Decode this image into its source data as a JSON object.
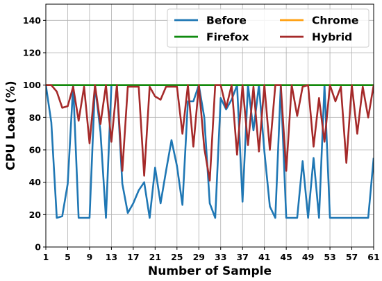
{
  "chart_data": {
    "type": "line",
    "title": "",
    "xlabel": "Number of Sample",
    "ylabel": "CPU Load (%)",
    "xlim": [
      1,
      61
    ],
    "ylim": [
      0,
      150
    ],
    "xticks": [
      1,
      5,
      9,
      13,
      17,
      21,
      25,
      29,
      33,
      37,
      41,
      45,
      49,
      53,
      57,
      61
    ],
    "yticks": [
      0,
      20,
      40,
      60,
      80,
      100,
      120,
      140
    ],
    "grid": true,
    "legend_position": "top-right",
    "x": [
      1,
      2,
      3,
      4,
      5,
      6,
      7,
      8,
      9,
      10,
      11,
      12,
      13,
      14,
      15,
      16,
      17,
      18,
      19,
      20,
      21,
      22,
      23,
      24,
      25,
      26,
      27,
      28,
      29,
      30,
      31,
      32,
      33,
      34,
      35,
      36,
      37,
      38,
      39,
      40,
      41,
      42,
      43,
      44,
      45,
      46,
      47,
      48,
      49,
      50,
      51,
      52,
      53,
      54,
      55,
      56,
      57,
      58,
      59,
      60,
      61
    ],
    "series": [
      {
        "name": "Before",
        "color": "#1f77b4",
        "values": [
          100,
          77,
          18,
          19,
          39,
          100,
          18,
          18,
          18,
          100,
          71,
          18,
          100,
          100,
          39,
          21,
          27,
          35,
          40,
          18,
          49,
          27,
          47,
          66,
          50,
          26,
          90,
          90,
          100,
          80,
          27,
          18,
          92,
          85,
          91,
          100,
          28,
          100,
          72,
          100,
          59,
          25,
          18,
          100,
          18,
          18,
          18,
          53,
          18,
          55,
          18,
          100,
          18,
          18,
          18,
          18,
          18,
          18,
          18,
          18,
          55
        ]
      },
      {
        "name": "Chrome",
        "color": "#ff9f10",
        "values": [
          100,
          100,
          100,
          100,
          100,
          100,
          100,
          100,
          100,
          100,
          100,
          100,
          100,
          100,
          100,
          100,
          100,
          100,
          100,
          100,
          100,
          100,
          100,
          100,
          100,
          100,
          100,
          100,
          100,
          100,
          100,
          100,
          100,
          100,
          100,
          100,
          100,
          100,
          100,
          100,
          100,
          100,
          100,
          100,
          100,
          100,
          100,
          100,
          100,
          100,
          100,
          100,
          100,
          100,
          100,
          100,
          100,
          100,
          100,
          100,
          100
        ]
      },
      {
        "name": "Firefox",
        "color": "#0f8a0f",
        "values": [
          100,
          100,
          100,
          100,
          100,
          100,
          100,
          100,
          100,
          100,
          100,
          100,
          100,
          100,
          100,
          100,
          100,
          100,
          100,
          100,
          100,
          100,
          100,
          100,
          100,
          100,
          100,
          100,
          100,
          100,
          100,
          100,
          100,
          100,
          100,
          100,
          100,
          100,
          100,
          100,
          100,
          100,
          100,
          100,
          100,
          100,
          100,
          100,
          100,
          100,
          100,
          100,
          100,
          100,
          100,
          100,
          100,
          100,
          100,
          100,
          100
        ]
      },
      {
        "name": "Hybrid",
        "color": "#a52a2a",
        "values": [
          100,
          100,
          96,
          86,
          87,
          99,
          78,
          99,
          64,
          100,
          76,
          100,
          65,
          100,
          47,
          99,
          99,
          99,
          44,
          99,
          93,
          91,
          99,
          99,
          99,
          70,
          100,
          62,
          100,
          61,
          41,
          100,
          100,
          86,
          100,
          57,
          100,
          63,
          99,
          59,
          100,
          60,
          100,
          100,
          47,
          100,
          81,
          99,
          100,
          62,
          92,
          65,
          100,
          90,
          99,
          52,
          100,
          70,
          99,
          80,
          100
        ]
      }
    ]
  }
}
